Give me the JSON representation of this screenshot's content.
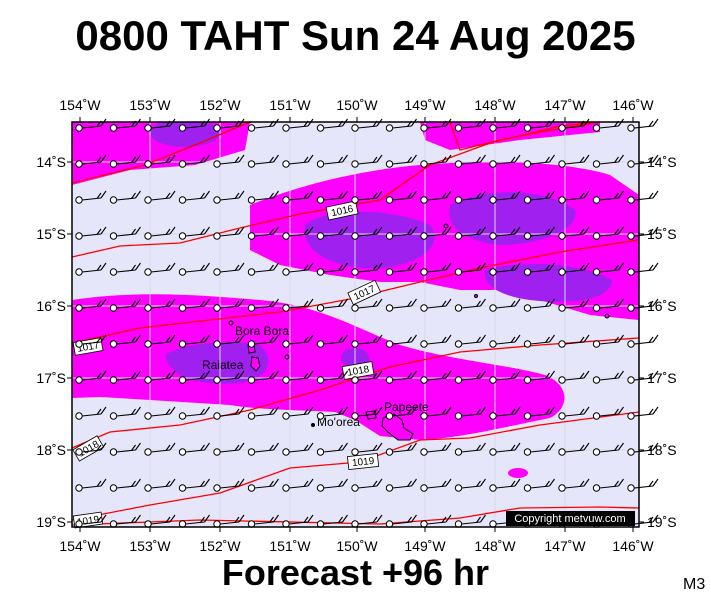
{
  "header": {
    "title": "0800 TAHT Sun 24 Aug 2025"
  },
  "footer": {
    "forecast": "Forecast +96 hr",
    "model": "M3"
  },
  "map": {
    "lon_labels": [
      "154˚W",
      "153˚W",
      "152˚W",
      "151˚W",
      "150˚W",
      "149˚W",
      "148˚W",
      "147˚W",
      "146˚W"
    ],
    "lat_labels": [
      "14˚S",
      "15˚S",
      "16˚S",
      "17˚S",
      "18˚S",
      "19˚S"
    ],
    "places": [
      "Bora Bora",
      "Raiatea",
      "Papeete",
      "Mo'orea"
    ],
    "isobar_labels": [
      "1016",
      "1017",
      "1017",
      "1018",
      "1018",
      "1019",
      "1019"
    ],
    "copyright": "Copyright metvuw.com",
    "colors": {
      "background": "#e6e6fa",
      "rain_light": "#ff00ff",
      "rain_heavy": "#a020f0",
      "isobar": "#ff0000",
      "border": "#000000"
    }
  }
}
